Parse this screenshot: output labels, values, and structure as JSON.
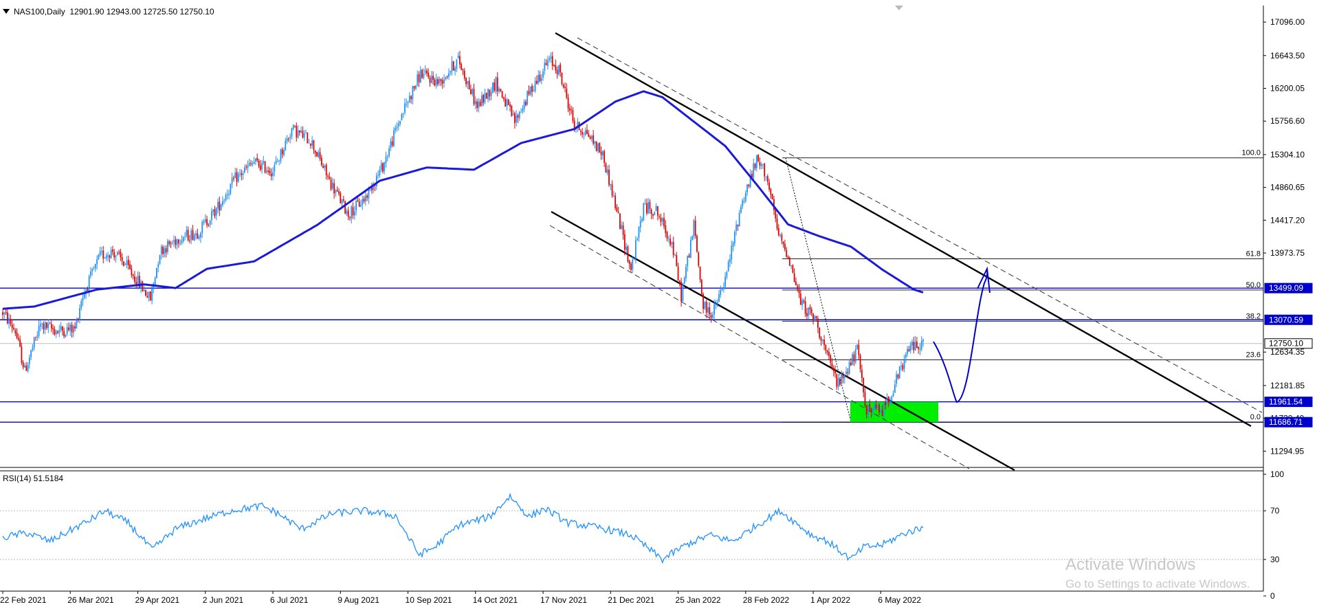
{
  "header": {
    "symbol": "NAS100,Daily",
    "ohlc": "12901.90 12943.00 12725.50 12750.10"
  },
  "rsi": {
    "label": "RSI(14) 51.5184"
  },
  "watermark": {
    "line1": "Activate Windows",
    "line2": "Go to Settings to activate Windows."
  },
  "colors": {
    "bull": "#1e90ff",
    "bear": "#e00000",
    "ma": "#1a1ad8",
    "level": "#0000cc",
    "zone": "#00ee00",
    "rsi": "#1e90ff"
  },
  "chart_data": {
    "type": "candlestick",
    "x_tick_labels": [
      "22 Feb 2021",
      "26 Mar 2021",
      "29 Apr 2021",
      "2 Jun 2021",
      "6 Jul 2021",
      "9 Aug 2021",
      "10 Sep 2021",
      "14 Oct 2021",
      "17 Nov 2021",
      "21 Dec 2021",
      "25 Jan 2022",
      "28 Feb 2022",
      "1 Apr 2022",
      "6 May 2022"
    ],
    "y_tick_labels": [
      "17096.00",
      "16643.50",
      "16200.05",
      "15756.60",
      "15304.10",
      "14860.65",
      "14417.20",
      "13973.75",
      "12634.35",
      "12181.85",
      "11738.40",
      "11294.95"
    ],
    "ylim": [
      11075,
      17320
    ],
    "price_tags": [
      {
        "label": "13499.09",
        "value": 13499.09,
        "style": "level"
      },
      {
        "label": "13070.59",
        "value": 13070.59,
        "style": "level"
      },
      {
        "label": "12750.10",
        "value": 12750.1,
        "style": "current"
      },
      {
        "label": "11961.54",
        "value": 11961.54,
        "style": "level"
      },
      {
        "label": "11686.71",
        "value": 11686.71,
        "style": "level"
      }
    ],
    "fibonacci": {
      "high": 15260,
      "low": 11686.71,
      "levels": [
        {
          "label": "100.0",
          "ratio": 1.0
        },
        {
          "label": "61.8",
          "ratio": 0.618
        },
        {
          "label": "50.0",
          "ratio": 0.5
        },
        {
          "label": "38.2",
          "ratio": 0.382
        },
        {
          "label": "23.6",
          "ratio": 0.236
        },
        {
          "label": "0.0",
          "ratio": 0.0
        }
      ]
    },
    "rsi_tick_labels": [
      "100",
      "70",
      "30",
      "0"
    ],
    "rsi_levels": [
      70,
      30
    ],
    "price_anchors": [
      [
        0,
        13170
      ],
      [
        8,
        12920
      ],
      [
        14,
        12380
      ],
      [
        24,
        13000
      ],
      [
        35,
        12920
      ],
      [
        46,
        12950
      ],
      [
        50,
        13350
      ],
      [
        62,
        13930
      ],
      [
        70,
        14000
      ],
      [
        78,
        13820
      ],
      [
        94,
        13350
      ],
      [
        100,
        14000
      ],
      [
        112,
        14180
      ],
      [
        124,
        14250
      ],
      [
        136,
        14560
      ],
      [
        148,
        14980
      ],
      [
        160,
        15200
      ],
      [
        172,
        15080
      ],
      [
        184,
        15650
      ],
      [
        196,
        15500
      ],
      [
        208,
        14950
      ],
      [
        220,
        14500
      ],
      [
        230,
        14700
      ],
      [
        242,
        15150
      ],
      [
        254,
        15850
      ],
      [
        266,
        16400
      ],
      [
        278,
        16280
      ],
      [
        290,
        16590
      ],
      [
        302,
        15950
      ],
      [
        314,
        16280
      ],
      [
        326,
        15750
      ],
      [
        338,
        16250
      ],
      [
        348,
        16580
      ],
      [
        354,
        16450
      ],
      [
        364,
        15700
      ],
      [
        372,
        15600
      ],
      [
        382,
        15300
      ],
      [
        392,
        14450
      ],
      [
        400,
        13750
      ],
      [
        408,
        14600
      ],
      [
        416,
        14550
      ],
      [
        426,
        14100
      ],
      [
        432,
        13400
      ],
      [
        440,
        14350
      ],
      [
        446,
        13250
      ],
      [
        452,
        13150
      ],
      [
        460,
        13600
      ],
      [
        470,
        14620
      ],
      [
        480,
        15220
      ],
      [
        486,
        15050
      ],
      [
        494,
        14200
      ],
      [
        500,
        13950
      ],
      [
        508,
        13300
      ],
      [
        518,
        13050
      ],
      [
        526,
        12500
      ],
      [
        532,
        12200
      ],
      [
        544,
        12650
      ],
      [
        550,
        11850
      ],
      [
        560,
        11850
      ],
      [
        566,
        12100
      ],
      [
        578,
        12720
      ],
      [
        586,
        12750
      ]
    ],
    "ma_anchors": [
      [
        0,
        13220
      ],
      [
        20,
        13250
      ],
      [
        60,
        13480
      ],
      [
        90,
        13550
      ],
      [
        110,
        13500
      ],
      [
        130,
        13760
      ],
      [
        160,
        13860
      ],
      [
        200,
        14350
      ],
      [
        240,
        14950
      ],
      [
        270,
        15130
      ],
      [
        300,
        15100
      ],
      [
        330,
        15460
      ],
      [
        364,
        15650
      ],
      [
        390,
        16020
      ],
      [
        408,
        16160
      ],
      [
        420,
        16080
      ],
      [
        460,
        15420
      ],
      [
        480,
        14900
      ],
      [
        500,
        14360
      ],
      [
        520,
        14200
      ],
      [
        540,
        14060
      ],
      [
        560,
        13750
      ],
      [
        580,
        13480
      ],
      [
        586,
        13440
      ]
    ],
    "rsi_anchors": [
      [
        0,
        48
      ],
      [
        15,
        52
      ],
      [
        30,
        45
      ],
      [
        55,
        62
      ],
      [
        65,
        70
      ],
      [
        80,
        60
      ],
      [
        95,
        38
      ],
      [
        110,
        55
      ],
      [
        125,
        62
      ],
      [
        145,
        70
      ],
      [
        165,
        74
      ],
      [
        175,
        68
      ],
      [
        190,
        55
      ],
      [
        210,
        68
      ],
      [
        230,
        70
      ],
      [
        250,
        66
      ],
      [
        265,
        34
      ],
      [
        275,
        40
      ],
      [
        290,
        58
      ],
      [
        310,
        65
      ],
      [
        323,
        82
      ],
      [
        335,
        65
      ],
      [
        345,
        72
      ],
      [
        360,
        60
      ],
      [
        380,
        56
      ],
      [
        400,
        50
      ],
      [
        420,
        30
      ],
      [
        435,
        42
      ],
      [
        450,
        50
      ],
      [
        465,
        45
      ],
      [
        480,
        58
      ],
      [
        495,
        70
      ],
      [
        505,
        60
      ],
      [
        515,
        50
      ],
      [
        525,
        45
      ],
      [
        540,
        30
      ],
      [
        548,
        40
      ],
      [
        560,
        42
      ],
      [
        575,
        52
      ],
      [
        586,
        56
      ]
    ],
    "x_tick_indices": [
      0,
      43,
      86,
      129,
      172,
      215,
      258,
      301,
      344,
      387,
      430,
      473,
      516,
      559
    ]
  }
}
